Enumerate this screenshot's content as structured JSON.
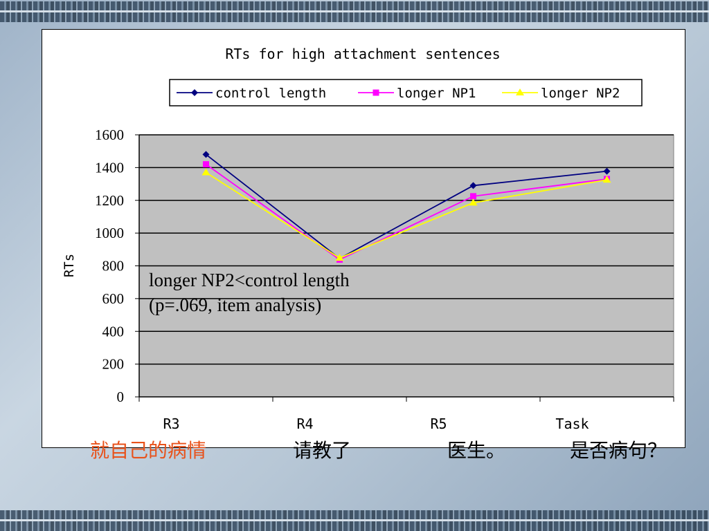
{
  "chart_data": {
    "type": "line",
    "title": "RTs for high attachment sentences",
    "xlabel": "",
    "ylabel": "RTs",
    "categories": [
      "R3",
      "R4",
      "R5",
      "Task"
    ],
    "ylim": [
      0,
      1600
    ],
    "yticks": [
      "0",
      "200",
      "400",
      "600",
      "800",
      "1000",
      "1200",
      "1400",
      "1600"
    ],
    "grid": true,
    "legend_position": "top",
    "series": [
      {
        "name": "control length",
        "values": [
          1480,
          845,
          1290,
          1378
        ],
        "color": "#000080",
        "marker": "diamond"
      },
      {
        "name": "longer NP1",
        "values": [
          1420,
          838,
          1225,
          1330
        ],
        "color": "#FF00FF",
        "marker": "square"
      },
      {
        "name": "longer NP2",
        "values": [
          1370,
          848,
          1185,
          1325
        ],
        "color": "#FFFF00",
        "marker": "triangle"
      }
    ],
    "annotation": [
      "longer NP2<control length",
      "(p=.069, item analysis)"
    ]
  },
  "captions": [
    {
      "text": "就自己的病情",
      "color": "#E8521B"
    },
    {
      "text": "请教了",
      "color": "#000000"
    },
    {
      "text": "医生。",
      "color": "#000000"
    },
    {
      "text": "是否病句？",
      "color": "#000000"
    }
  ],
  "colors": {
    "plot_bg": "#C0C0C0",
    "grid": "#000000"
  }
}
